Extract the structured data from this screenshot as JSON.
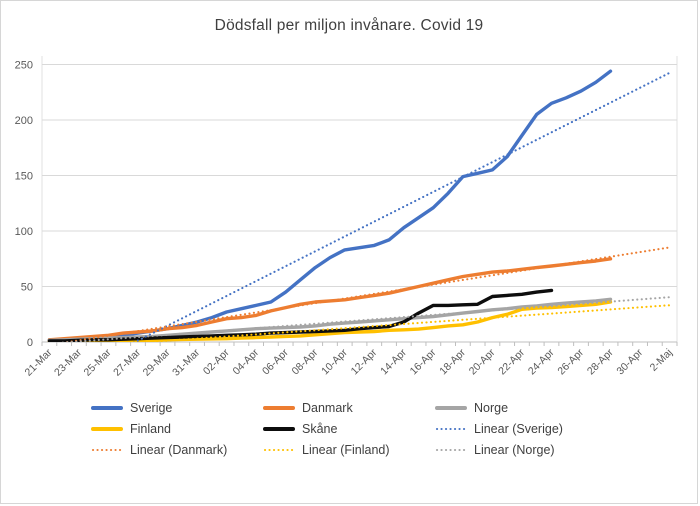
{
  "chart_data": {
    "type": "line",
    "title": "Dödsfall per miljon invånare. Covid 19",
    "x_tick_labels": [
      "21-Mar",
      "23-Mar",
      "25-Mar",
      "27-Mar",
      "29-Mar",
      "31-Mar",
      "02-Apr",
      "04-Apr",
      "06-Apr",
      "08-Apr",
      "10-Apr",
      "12-Apr",
      "14-Apr",
      "16-Apr",
      "18-Apr",
      "20-Apr",
      "22-Apr",
      "24-Apr",
      "26-Apr",
      "28-Apr",
      "30-Apr",
      "2-Maj"
    ],
    "x_tick_label_interval_days": 2,
    "x_total_categories": 43,
    "ylim": [
      0,
      250
    ],
    "y_ticks": [
      0,
      50,
      100,
      150,
      200,
      250
    ],
    "grid": "horizontal",
    "legend_position": "bottom",
    "series": [
      {
        "name": "Sverige",
        "color": "#4472C4",
        "start_day": 0,
        "values": [
          2,
          2,
          3,
          4,
          5,
          6,
          8,
          10,
          12,
          15,
          18,
          22,
          27,
          30,
          33,
          36,
          45,
          56,
          67,
          76,
          83,
          85,
          87,
          92,
          103,
          112,
          121,
          134,
          149,
          152,
          155,
          167,
          186,
          205,
          215,
          220,
          226,
          234,
          244
        ]
      },
      {
        "name": "Danmark",
        "color": "#ED7D31",
        "start_day": 0,
        "values": [
          2,
          3,
          4,
          5,
          6,
          8,
          9,
          10,
          12,
          13,
          15,
          18,
          21,
          22,
          24,
          28,
          31,
          34,
          36,
          37,
          38,
          40,
          42,
          44,
          47,
          50,
          53,
          56,
          59,
          61,
          63,
          64,
          65.5,
          67,
          68.5,
          70,
          71.5,
          73,
          75
        ]
      },
      {
        "name": "Norge",
        "color": "#A5A5A5",
        "start_day": 0,
        "values": [
          1.5,
          2,
          2.5,
          3,
          3.5,
          4,
          4.5,
          5,
          6,
          7,
          8,
          9,
          10,
          11,
          12,
          12.5,
          13,
          13.5,
          14.5,
          16,
          17,
          18,
          19,
          20,
          21,
          22,
          23,
          24.5,
          26,
          27.5,
          29,
          30,
          31.5,
          32.5,
          34,
          35,
          36,
          37,
          38.5
        ]
      },
      {
        "name": "Finland",
        "color": "#FFC000",
        "start_day": 0,
        "values": [
          0.2,
          0.4,
          0.5,
          0.7,
          0.9,
          1,
          1.2,
          1.5,
          2,
          2.3,
          2.5,
          2.8,
          3,
          3.5,
          4,
          4.5,
          5,
          5.5,
          6.5,
          7.5,
          8.5,
          9,
          9.5,
          10.5,
          11,
          11.6,
          13,
          14.5,
          15.5,
          18,
          22,
          25,
          29.5,
          30.5,
          31,
          32,
          33,
          34,
          36
        ]
      },
      {
        "name": "Skåne",
        "color": "#0D0D0D",
        "start_day": 0,
        "values": [
          1,
          1,
          1.5,
          2,
          2,
          2.5,
          3,
          3.5,
          4,
          4.5,
          5,
          5.5,
          6,
          6.5,
          7,
          8,
          8.5,
          9,
          9.5,
          10,
          10.5,
          12,
          13,
          14,
          18,
          26,
          33,
          33,
          33.5,
          34,
          41,
          42,
          43,
          45,
          46.5
        ]
      }
    ],
    "trendlines": [
      {
        "name": "Linear (Sverige)",
        "source": "Sverige",
        "color": "#4472C4",
        "extends_to_day": 42
      },
      {
        "name": "Linear (Danmark)",
        "source": "Danmark",
        "color": "#ED7D31",
        "extends_to_day": 42
      },
      {
        "name": "Linear (Finland)",
        "source": "Finland",
        "color": "#FFC000",
        "extends_to_day": 42
      },
      {
        "name": "Linear (Norge)",
        "source": "Norge",
        "color": "#A5A5A5",
        "extends_to_day": 42
      }
    ],
    "legend": {
      "rows": [
        [
          {
            "label": "Sverige",
            "color": "#4472C4",
            "style": "solid"
          },
          {
            "label": "Danmark",
            "color": "#ED7D31",
            "style": "solid"
          },
          {
            "label": "Norge",
            "color": "#A5A5A5",
            "style": "solid"
          }
        ],
        [
          {
            "label": "Finland",
            "color": "#FFC000",
            "style": "solid"
          },
          {
            "label": "Skåne",
            "color": "#0D0D0D",
            "style": "solid"
          },
          {
            "label": "Linear (Sverige)",
            "color": "#4472C4",
            "style": "dotted"
          }
        ],
        [
          {
            "label": "Linear (Danmark)",
            "color": "#ED7D31",
            "style": "dotted"
          },
          {
            "label": "Linear (Finland)",
            "color": "#FFC000",
            "style": "dotted"
          },
          {
            "label": "Linear (Norge)",
            "color": "#A5A5A5",
            "style": "dotted"
          }
        ]
      ]
    }
  }
}
